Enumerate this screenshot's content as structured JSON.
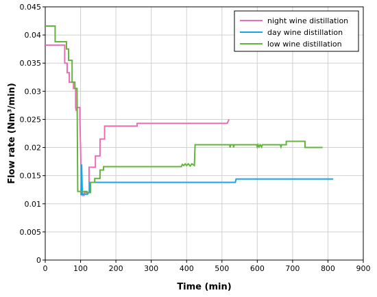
{
  "chart_data": {
    "type": "line",
    "title": "",
    "xlabel": "Time (min)",
    "ylabel": "Flow  rate (Nm³/min)",
    "xlim": [
      0,
      900
    ],
    "ylim": [
      0,
      0.045
    ],
    "x_ticks": [
      0,
      100,
      200,
      300,
      400,
      500,
      600,
      700,
      800,
      900
    ],
    "y_ticks": [
      0,
      0.005,
      0.01,
      0.015,
      0.02,
      0.025,
      0.03,
      0.035,
      0.04,
      0.045
    ],
    "x_tick_labels": [
      "0",
      "100",
      "200",
      "300",
      "400",
      "500",
      "600",
      "700",
      "800",
      "900"
    ],
    "y_tick_labels": [
      "0",
      "0.005",
      "0.01",
      "0.015",
      "0.02",
      "0.025",
      "0.03",
      "0.035",
      "0.04",
      "0.045"
    ],
    "grid": true,
    "legend_position": "top-right",
    "series": [
      {
        "name": "night wine distillation",
        "color": "#f06bb6",
        "points": [
          [
            0,
            0.0382
          ],
          [
            55,
            0.0382
          ],
          [
            55,
            0.035
          ],
          [
            62,
            0.035
          ],
          [
            62,
            0.0333
          ],
          [
            68,
            0.0333
          ],
          [
            68,
            0.0316
          ],
          [
            80,
            0.0316
          ],
          [
            80,
            0.0305
          ],
          [
            86,
            0.0305
          ],
          [
            86,
            0.0271
          ],
          [
            88,
            0.0265
          ],
          [
            90,
            0.0271
          ],
          [
            98,
            0.0271
          ],
          [
            98,
            0.025
          ],
          [
            100,
            0.02
          ],
          [
            102,
            0.013
          ],
          [
            105,
            0.0115
          ],
          [
            110,
            0.0115
          ],
          [
            110,
            0.012
          ],
          [
            124,
            0.012
          ],
          [
            124,
            0.0165
          ],
          [
            142,
            0.0165
          ],
          [
            142,
            0.0185
          ],
          [
            155,
            0.0185
          ],
          [
            155,
            0.0215
          ],
          [
            168,
            0.0215
          ],
          [
            168,
            0.0238
          ],
          [
            260,
            0.0238
          ],
          [
            260,
            0.0243
          ],
          [
            515,
            0.0243
          ],
          [
            520,
            0.025
          ]
        ]
      },
      {
        "name": "day wine distillation",
        "color": "#1aa3e8",
        "points": [
          [
            101,
            0.0115
          ],
          [
            103,
            0.017
          ],
          [
            105,
            0.0117
          ],
          [
            120,
            0.0117
          ],
          [
            122,
            0.012
          ],
          [
            126,
            0.012
          ],
          [
            126,
            0.0138
          ],
          [
            538,
            0.0138
          ],
          [
            540,
            0.0144
          ],
          [
            815,
            0.0144
          ]
        ]
      },
      {
        "name": "low wine distillation",
        "color": "#64b33c",
        "points": [
          [
            0,
            0.0416
          ],
          [
            28,
            0.0416
          ],
          [
            28,
            0.0388
          ],
          [
            60,
            0.0388
          ],
          [
            60,
            0.0375
          ],
          [
            66,
            0.0375
          ],
          [
            66,
            0.0355
          ],
          [
            76,
            0.0355
          ],
          [
            76,
            0.0316
          ],
          [
            84,
            0.0316
          ],
          [
            84,
            0.0305
          ],
          [
            90,
            0.0305
          ],
          [
            92,
            0.0122
          ],
          [
            118,
            0.0122
          ],
          [
            118,
            0.012
          ],
          [
            128,
            0.012
          ],
          [
            128,
            0.0138
          ],
          [
            140,
            0.0138
          ],
          [
            140,
            0.0145
          ],
          [
            155,
            0.0145
          ],
          [
            155,
            0.016
          ],
          [
            165,
            0.016
          ],
          [
            165,
            0.0166
          ],
          [
            385,
            0.0166
          ],
          [
            388,
            0.017
          ],
          [
            392,
            0.0168
          ],
          [
            396,
            0.0171
          ],
          [
            400,
            0.0168
          ],
          [
            405,
            0.0171
          ],
          [
            410,
            0.0167
          ],
          [
            415,
            0.0171
          ],
          [
            422,
            0.0168
          ],
          [
            424,
            0.0205
          ],
          [
            522,
            0.0205
          ],
          [
            523,
            0.02
          ],
          [
            525,
            0.0205
          ],
          [
            532,
            0.0205
          ],
          [
            533,
            0.02
          ],
          [
            535,
            0.0205
          ],
          [
            598,
            0.0205
          ],
          [
            600,
            0.0201
          ],
          [
            602,
            0.0205
          ],
          [
            605,
            0.0201
          ],
          [
            608,
            0.0205
          ],
          [
            612,
            0.0201
          ],
          [
            614,
            0.0205
          ],
          [
            665,
            0.0205
          ],
          [
            667,
            0.0201
          ],
          [
            669,
            0.0205
          ],
          [
            682,
            0.0205
          ],
          [
            682,
            0.0211
          ],
          [
            735,
            0.0211
          ],
          [
            735,
            0.02
          ],
          [
            785,
            0.02
          ]
        ]
      }
    ]
  }
}
